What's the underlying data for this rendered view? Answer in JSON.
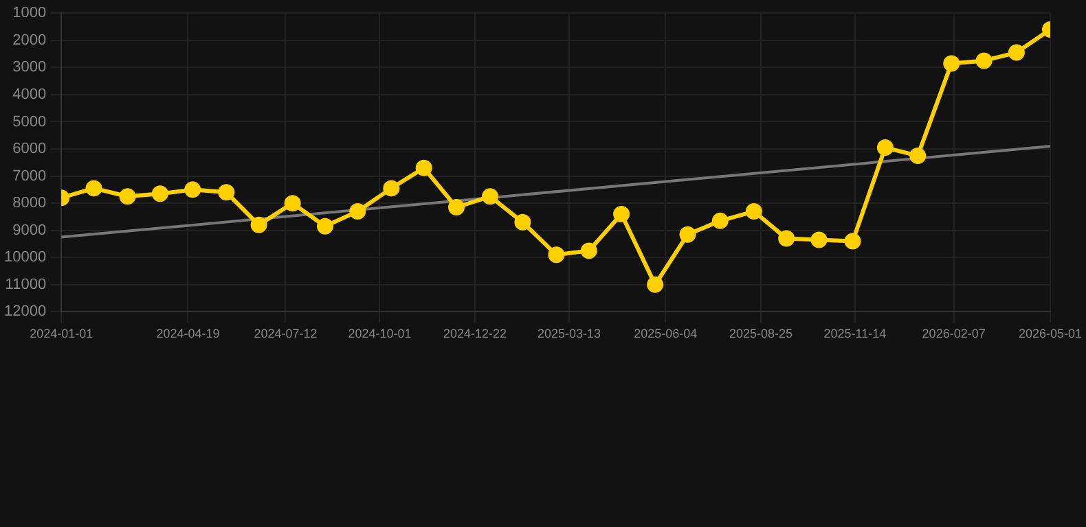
{
  "chart_data": {
    "type": "line",
    "x": [
      "2024-01-01",
      "2024-01-29",
      "2024-02-27",
      "2024-03-26",
      "2024-04-23",
      "2024-05-22",
      "2024-06-19",
      "2024-07-18",
      "2024-08-15",
      "2024-09-12",
      "2024-10-11",
      "2024-11-08",
      "2024-12-06",
      "2025-01-04",
      "2025-02-01",
      "2025-03-02",
      "2025-03-30",
      "2025-04-27",
      "2025-05-26",
      "2025-06-23",
      "2025-07-21",
      "2025-08-19",
      "2025-09-16",
      "2025-10-14",
      "2025-11-12",
      "2025-12-10",
      "2026-01-07",
      "2026-02-05",
      "2026-03-05",
      "2026-04-02",
      "2026-05-01"
    ],
    "series": [
      {
        "color": "#ffd000",
        "marker": "circle",
        "values": [
          7800,
          7450,
          7750,
          7650,
          7500,
          7600,
          8800,
          8000,
          8850,
          8300,
          7450,
          6700,
          8150,
          7750,
          8700,
          9900,
          9750,
          8400,
          11000,
          9150,
          8650,
          8300,
          9300,
          9350,
          9400,
          5950,
          6250,
          2850,
          2750,
          2450,
          1600
        ]
      },
      {
        "type": "line",
        "color": "#777777",
        "marker": "none",
        "x": [
          "2024-01-01",
          "2026-05-01"
        ],
        "values": [
          9250,
          5900
        ]
      }
    ],
    "xlim": [
      "2024-01-01",
      "2026-05-01"
    ],
    "xticks": [
      "2024-01-01",
      "2024-04-19",
      "2024-07-12",
      "2024-10-01",
      "2024-12-22",
      "2025-03-13",
      "2025-06-04",
      "2025-08-25",
      "2025-11-14",
      "2026-02-07",
      "2026-05-01"
    ],
    "ylim": [
      12000,
      1000
    ],
    "yticks": [
      1000,
      2000,
      3000,
      4000,
      5000,
      6000,
      7000,
      8000,
      9000,
      10000,
      11000,
      12000
    ],
    "grid": true,
    "line_style": "solid"
  }
}
